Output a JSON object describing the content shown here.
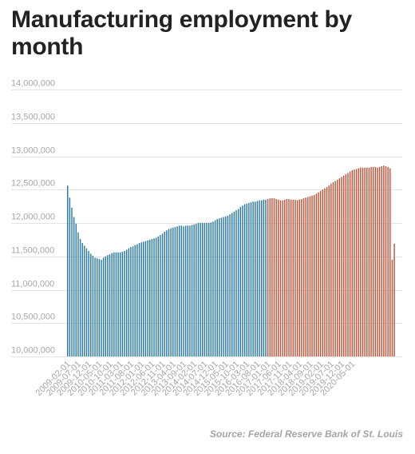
{
  "title": "Manufacturing employment by month",
  "source": "Source: Federal Reserve Bank of St. Louis",
  "colors": {
    "before": "#2a7aa5",
    "after": "#c0553a",
    "grid": "#e4e4e4",
    "tick_text": "#a7a7a7"
  },
  "chart_data": {
    "type": "bar",
    "title": "Manufacturing employment by month",
    "xlabel": "",
    "ylabel": "",
    "ylim": [
      10000000,
      14000000
    ],
    "yticks": [
      10000000,
      10500000,
      11000000,
      11500000,
      12000000,
      12500000,
      13000000,
      13500000,
      14000000
    ],
    "ytick_labels": [
      "10,000,000",
      "10,500,000",
      "11,000,000",
      "11,500,000",
      "12,000,000",
      "12,500,000",
      "13,000,000",
      "13,500,000",
      "14,000,000"
    ],
    "xtick_labels": [
      "2009-02-01",
      "2009-07-01",
      "2009-12-01",
      "2010-05-01",
      "2010-10-01",
      "2011-03-01",
      "2011-08-01",
      "2012-01-01",
      "2012-06-01",
      "2012-11-01",
      "2013-04-01",
      "2013-09-01",
      "2014-02-01",
      "2014-07-01",
      "2014-12-01",
      "2015-05-01",
      "2015-10-01",
      "2016-03-01",
      "2016-08-01",
      "2017-01-01",
      "2017-06-01",
      "2017-11-01",
      "2018-04-01",
      "2018-09-01",
      "2019-02-01",
      "2019-07-01",
      "2019-12-01",
      "2020-05-01"
    ],
    "grid": "horizontal",
    "start_month": "2009-02",
    "color_change_month": "2017-01",
    "values": [
      12560000,
      12380000,
      12230000,
      12090000,
      11990000,
      11860000,
      11760000,
      11700000,
      11660000,
      11620000,
      11580000,
      11540000,
      11510000,
      11480000,
      11470000,
      11460000,
      11450000,
      11480000,
      11500000,
      11520000,
      11530000,
      11550000,
      11560000,
      11560000,
      11560000,
      11560000,
      11570000,
      11580000,
      11600000,
      11620000,
      11640000,
      11650000,
      11670000,
      11680000,
      11700000,
      11710000,
      11720000,
      11730000,
      11740000,
      11750000,
      11760000,
      11770000,
      11780000,
      11800000,
      11820000,
      11840000,
      11870000,
      11890000,
      11910000,
      11920000,
      11930000,
      11940000,
      11950000,
      11960000,
      11960000,
      11950000,
      11960000,
      11960000,
      11960000,
      11970000,
      11980000,
      11990000,
      12000000,
      12000000,
      12000000,
      12000000,
      12000000,
      12000000,
      12010000,
      12020000,
      12040000,
      12060000,
      12070000,
      12080000,
      12090000,
      12100000,
      12110000,
      12130000,
      12150000,
      12170000,
      12190000,
      12210000,
      12240000,
      12260000,
      12280000,
      12290000,
      12300000,
      12310000,
      12320000,
      12320000,
      12330000,
      12340000,
      12340000,
      12350000,
      12350000,
      12360000,
      12370000,
      12370000,
      12370000,
      12360000,
      12350000,
      12340000,
      12340000,
      12350000,
      12360000,
      12360000,
      12350000,
      12350000,
      12350000,
      12340000,
      12350000,
      12360000,
      12370000,
      12380000,
      12390000,
      12400000,
      12410000,
      12420000,
      12440000,
      12460000,
      12480000,
      12500000,
      12520000,
      12540000,
      12560000,
      12590000,
      12610000,
      12630000,
      12650000,
      12670000,
      12690000,
      12710000,
      12730000,
      12750000,
      12770000,
      12790000,
      12800000,
      12810000,
      12820000,
      12830000,
      12830000,
      12830000,
      12830000,
      12830000,
      12840000,
      12840000,
      12840000,
      12830000,
      12840000,
      12850000,
      12860000,
      12850000,
      12840000,
      12820000,
      11450000,
      11690000
    ]
  }
}
